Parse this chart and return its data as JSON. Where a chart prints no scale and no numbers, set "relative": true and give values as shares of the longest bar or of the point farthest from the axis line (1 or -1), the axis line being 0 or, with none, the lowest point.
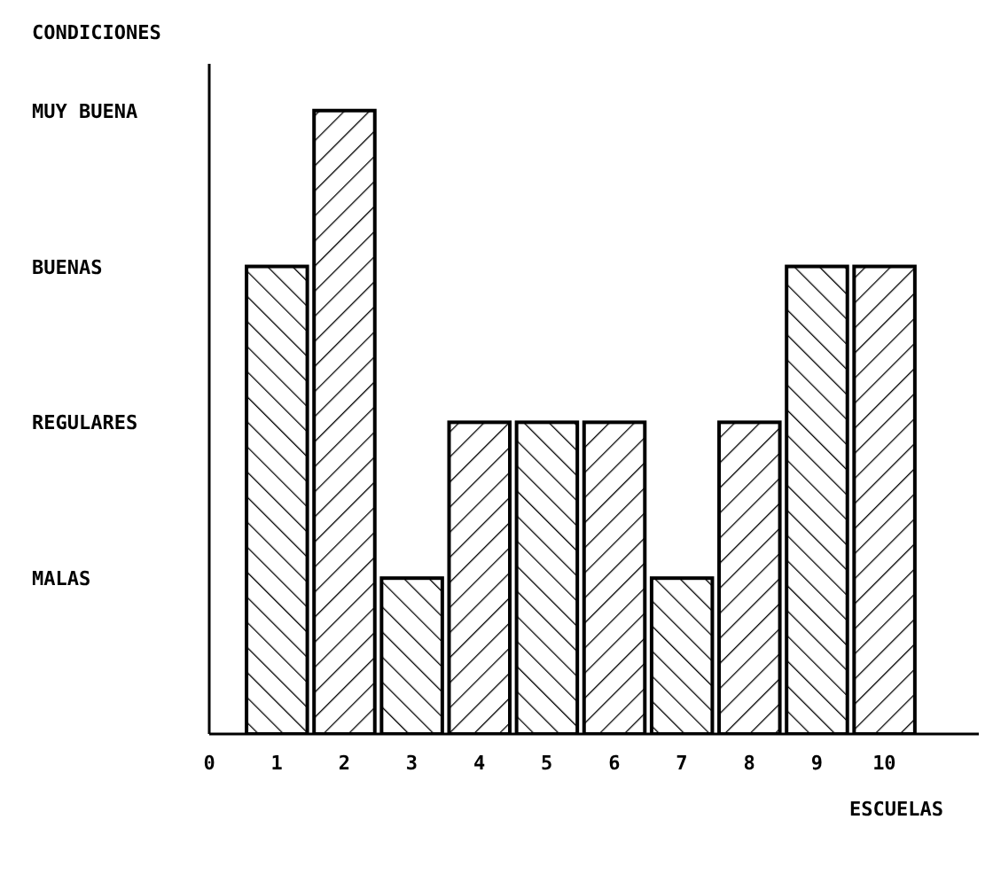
{
  "chart_data": {
    "type": "bar",
    "xlabel": "ESCUELAS",
    "ylabel": "CONDICIONES",
    "x": [
      1,
      2,
      3,
      4,
      5,
      6,
      7,
      8,
      9,
      10
    ],
    "values": [
      0.75,
      1,
      0.25,
      0.5,
      0.5,
      0.5,
      0.25,
      0.5,
      0.75,
      0.75
    ],
    "relative": true,
    "color": "#000000",
    "xlim": [
      0,
      11.4
    ],
    "xticks": [
      0,
      1,
      2,
      3,
      4,
      5,
      6,
      7,
      8,
      9,
      10
    ],
    "annotations": [
      "MALAS",
      "REGULARES",
      "BUENAS",
      "MUY BUENA"
    ],
    "grid": false,
    "legend": false
  }
}
